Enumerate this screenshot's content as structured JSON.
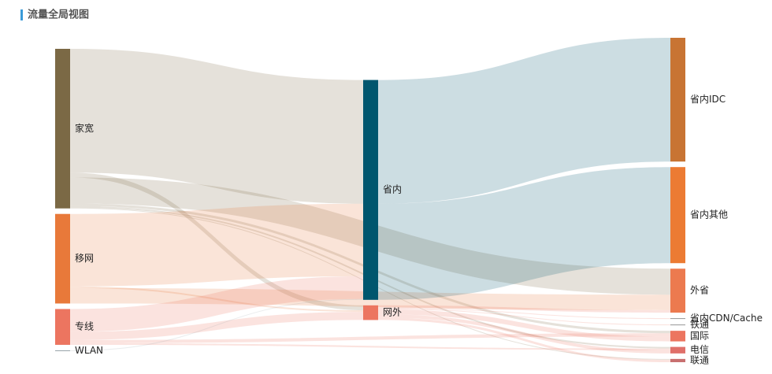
{
  "chart_data": {
    "type": "sankey",
    "title": "流量全局视图",
    "nodes": [
      {
        "name": "家宽",
        "color": "#7b6945",
        "column": 0
      },
      {
        "name": "移网",
        "color": "#e8793a",
        "column": 0
      },
      {
        "name": "专线",
        "color": "#ec7560",
        "column": 0
      },
      {
        "name": "WLAN",
        "color": "#99a4aa",
        "column": 0
      },
      {
        "name": "省内",
        "color": "#00566e",
        "column": 1
      },
      {
        "name": "网外",
        "color": "#ec7560",
        "column": 1
      },
      {
        "name": "省内IDC",
        "color": "#c87433",
        "column": 2
      },
      {
        "name": "省内其他",
        "color": "#ec7b33",
        "column": 2
      },
      {
        "name": "外省",
        "color": "#ec7a4f",
        "column": 2
      },
      {
        "name": "省内CDN/Cache",
        "color": "#999999",
        "column": 2
      },
      {
        "name": "铁通",
        "color": "#999999",
        "column": 2
      },
      {
        "name": "国际",
        "color": "#ec7560",
        "column": 2
      },
      {
        "name": "电信",
        "color": "#e0706a",
        "column": 2
      },
      {
        "name": "联通",
        "color": "#c87070",
        "column": 2
      }
    ],
    "links": [
      {
        "source": "家宽",
        "target": "省内",
        "value": 152
      },
      {
        "source": "家宽",
        "target": "网外",
        "value": 6
      },
      {
        "source": "家宽",
        "target": "外省",
        "value": 32
      },
      {
        "source": "家宽",
        "target": "国际",
        "value": 3
      },
      {
        "source": "家宽",
        "target": "电信",
        "value": 2
      },
      {
        "source": "家宽",
        "target": "联通",
        "value": 1
      },
      {
        "source": "移网",
        "target": "省内",
        "value": 89
      },
      {
        "source": "移网",
        "target": "网外",
        "value": 2
      },
      {
        "source": "移网",
        "target": "外省",
        "value": 19
      },
      {
        "source": "专线",
        "target": "省内",
        "value": 28
      },
      {
        "source": "专线",
        "target": "网外",
        "value": 10
      },
      {
        "source": "专线",
        "target": "国际",
        "value": 4
      },
      {
        "source": "专线",
        "target": "电信",
        "value": 2
      },
      {
        "source": "WLAN",
        "target": "省内",
        "value": 1
      },
      {
        "source": "省内",
        "target": "省内IDC",
        "value": 152
      },
      {
        "source": "省内",
        "target": "省内其他",
        "value": 118
      },
      {
        "source": "网外",
        "target": "外省",
        "value": 3
      },
      {
        "source": "网外",
        "target": "省内CDN/Cache",
        "value": 1
      },
      {
        "source": "网外",
        "target": "铁通",
        "value": 1
      },
      {
        "source": "网外",
        "target": "国际",
        "value": 6
      },
      {
        "source": "网外",
        "target": "电信",
        "value": 4
      },
      {
        "source": "网外",
        "target": "联通",
        "value": 3
      }
    ]
  }
}
